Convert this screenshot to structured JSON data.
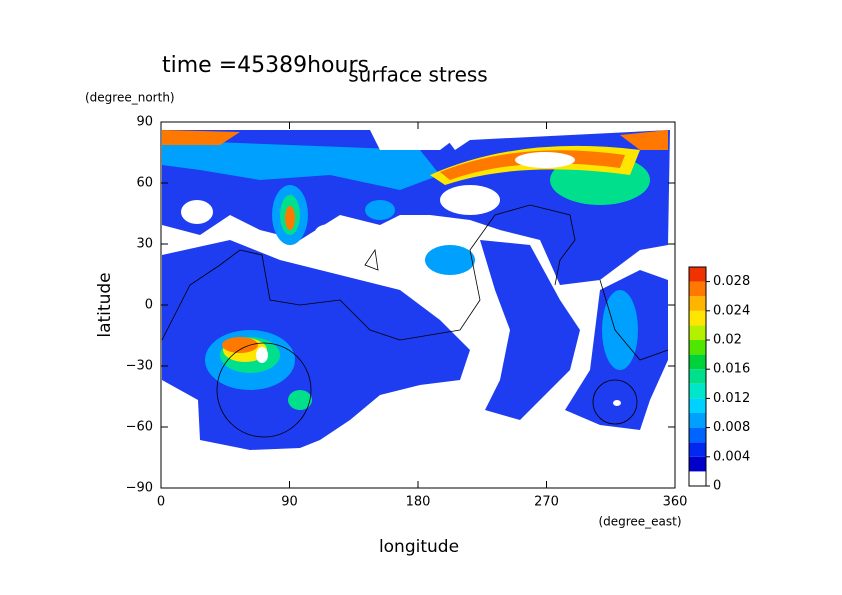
{
  "chart_data": {
    "type": "contour",
    "title": "surface stress",
    "subtitle": "time =45389hours",
    "x_label": "longitude",
    "x_unit": "(degree_east)",
    "y_label": "latitude",
    "y_unit": "(degree_north)",
    "xlim": [
      0,
      360
    ],
    "xticks": [
      0,
      90,
      180,
      270,
      360
    ],
    "ylim": [
      -90,
      90
    ],
    "yticks": [
      {
        "value": -90,
        "label": "−90"
      },
      {
        "value": -60,
        "label": "−60"
      },
      {
        "value": -30,
        "label": "−30"
      },
      0,
      30,
      60,
      90
    ],
    "clim": [
      0,
      0.03
    ],
    "cticks": [
      0,
      0.004,
      0.008,
      0.012,
      0.016,
      0.02,
      0.024,
      0.028
    ],
    "colors": [
      "#ffffff",
      "#0000c8",
      "#0028f0",
      "#0064ff",
      "#00a0ff",
      "#00d2ff",
      "#00e6c8",
      "#00e08c",
      "#00d23c",
      "#50e600",
      "#b4f000",
      "#ffe600",
      "#ffb400",
      "#ff7800",
      "#f03200"
    ]
  }
}
